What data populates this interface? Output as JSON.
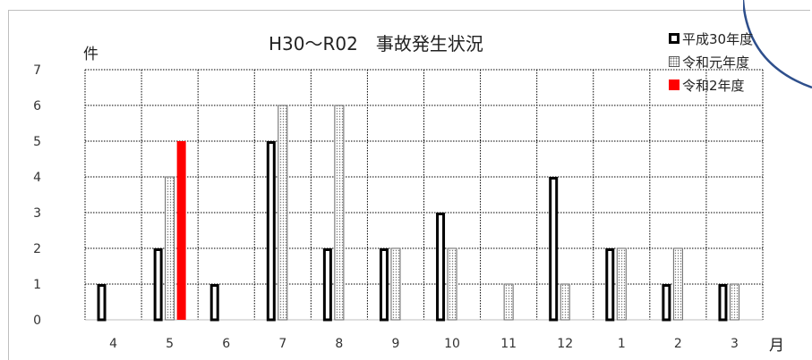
{
  "chart_data": {
    "type": "bar",
    "title": "H30〜R02　事故発生状況",
    "ylabel": "件",
    "xlabel": "月",
    "categories": [
      "4",
      "5",
      "6",
      "7",
      "8",
      "9",
      "10",
      "11",
      "12",
      "1",
      "2",
      "3"
    ],
    "ylim": [
      0,
      7
    ],
    "yticks": [
      "0",
      "1",
      "2",
      "3",
      "4",
      "5",
      "6",
      "7"
    ],
    "grid": true,
    "legend": "top-right",
    "series": [
      {
        "name": "平成30年度",
        "values": [
          1,
          2,
          1,
          5,
          2,
          2,
          3,
          0,
          4,
          2,
          1,
          1
        ],
        "style": "outline",
        "color": "#000000"
      },
      {
        "name": "令和元年度",
        "values": [
          0,
          4,
          0,
          6,
          6,
          2,
          2,
          1,
          1,
          2,
          2,
          1
        ],
        "style": "dotted",
        "color": "#888888"
      },
      {
        "name": "令和2年度",
        "values": [
          0,
          5,
          0,
          0,
          0,
          0,
          0,
          0,
          0,
          0,
          0,
          0
        ],
        "style": "solid",
        "color": "#ff0000"
      }
    ]
  }
}
